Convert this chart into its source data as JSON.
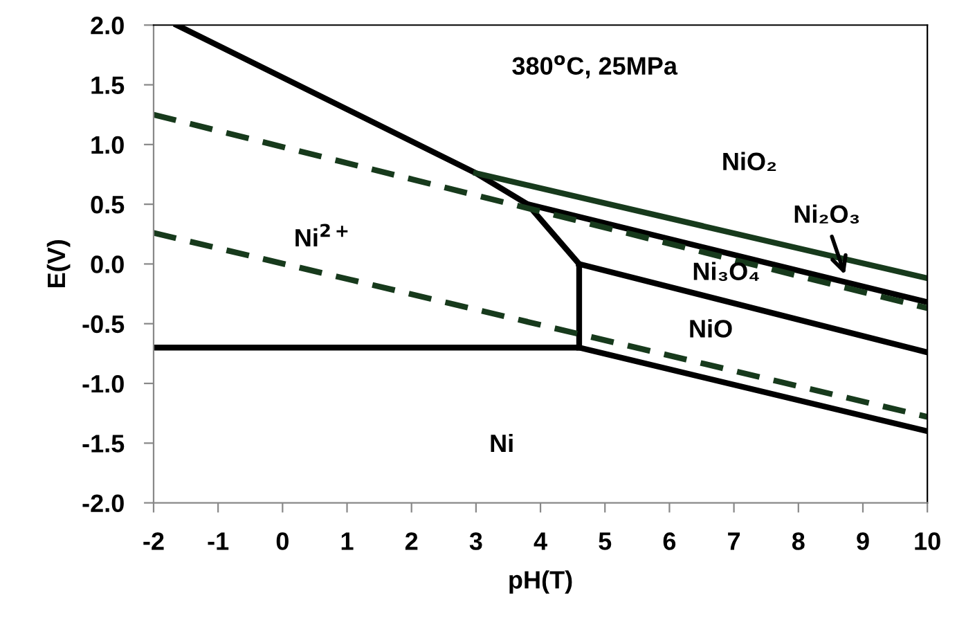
{
  "chart_data": {
    "type": "line",
    "xlabel": "pH(T)",
    "ylabel": "E(V)",
    "xlim": [
      -2,
      10
    ],
    "ylim": [
      -2.0,
      2.0
    ],
    "xticks": [
      -2,
      -1,
      0,
      1,
      2,
      3,
      4,
      5,
      6,
      7,
      8,
      9,
      10
    ],
    "yticks": [
      {
        "value": -2.0,
        "label": "-2.0"
      },
      {
        "value": -1.5,
        "label": "-1.5"
      },
      {
        "value": -1.0,
        "label": "-1.0"
      },
      {
        "value": -0.5,
        "label": "-0.5"
      },
      {
        "value": 0.0,
        "label": "0.0"
      },
      {
        "value": 0.5,
        "label": "0.5"
      },
      {
        "value": 1.0,
        "label": "1.0"
      },
      {
        "value": 1.5,
        "label": "1.5"
      },
      {
        "value": 2.0,
        "label": "2.0"
      }
    ],
    "grid": false,
    "legend": false,
    "marker": "none",
    "series": [
      {
        "color": "#000000",
        "line_style": "solid",
        "x": [
          -1.64,
          3.0,
          3.8,
          4.6,
          4.6
        ],
        "values": [
          2.0,
          0.76,
          0.5,
          0.0,
          -0.7
        ]
      },
      {
        "color": "#000000",
        "line_style": "solid",
        "x": [
          -2,
          4.6,
          10
        ],
        "values": [
          -0.7,
          -0.7,
          -1.4
        ]
      },
      {
        "color": "#000000",
        "line_style": "solid",
        "x": [
          4.6,
          10
        ],
        "values": [
          0.0,
          -0.74
        ]
      },
      {
        "color": "#000000",
        "line_style": "solid",
        "x": [
          3.8,
          10
        ],
        "values": [
          0.5,
          -0.32
        ]
      },
      {
        "color": "#173a1c",
        "line_style": "solid",
        "x": [
          3.0,
          10
        ],
        "values": [
          0.76,
          -0.12
        ]
      },
      {
        "color": "#173a1c",
        "line_style": "dashed",
        "x": [
          -2,
          10
        ],
        "values": [
          1.25,
          -0.37
        ]
      },
      {
        "color": "#173a1c",
        "line_style": "dashed",
        "x": [
          -2,
          10
        ],
        "values": [
          0.26,
          -1.28
        ]
      }
    ],
    "annotations": [
      "380$^{o}$C, 25MPa",
      "NiO₂",
      "Ni₂O₃",
      "Ni₃O₄",
      "NiO",
      "Ni$^{2+}$",
      "Ni"
    ]
  }
}
